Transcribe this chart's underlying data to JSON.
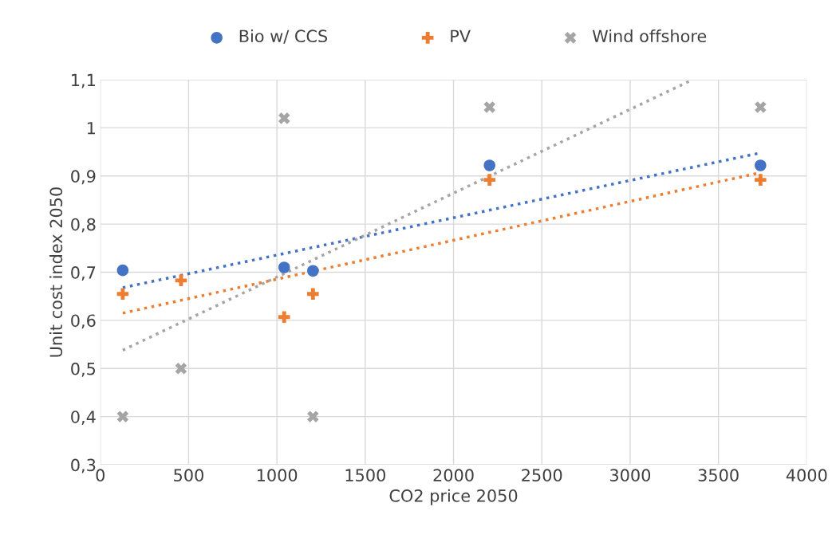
{
  "chart_data": {
    "type": "scatter",
    "xlabel": "CO2 price 2050",
    "ylabel": "Unit cost index 2050",
    "xlim": [
      0,
      4000
    ],
    "xticks": [
      0,
      500,
      1000,
      1500,
      2000,
      2500,
      3000,
      3500,
      4000
    ],
    "ylim": [
      0.3,
      1.1
    ],
    "yticks": [
      {
        "value": 0.3,
        "label": "0,3"
      },
      {
        "value": 0.4,
        "label": "0,4"
      },
      {
        "value": 0.5,
        "label": "0,5"
      },
      {
        "value": 0.6,
        "label": "0,6"
      },
      {
        "value": 0.7,
        "label": "0,7"
      },
      {
        "value": 0.8,
        "label": "0,8"
      },
      {
        "value": 0.9,
        "label": "0,9"
      },
      {
        "value": 1,
        "label": "1"
      },
      {
        "value": 1.1,
        "label": "1,1"
      }
    ],
    "grid": true,
    "legend": "top",
    "series": [
      {
        "name": "Bio w/ CCS",
        "color": "#4472c4",
        "marker": "circle",
        "x": [
          127,
          1041,
          1204,
          2204,
          3738
        ],
        "values": [
          0.704,
          0.71,
          0.703,
          0.922,
          0.922
        ]
      },
      {
        "name": "PV",
        "color": "#ed7d31",
        "marker": "plus",
        "x": [
          127,
          457,
          1041,
          1204,
          2204,
          3738
        ],
        "values": [
          0.655,
          0.683,
          0.607,
          0.655,
          0.892,
          0.892
        ]
      },
      {
        "name": "Wind offshore",
        "color": "#a5a5a5",
        "marker": "cross",
        "x": [
          127,
          457,
          1041,
          1204,
          2204,
          3738
        ],
        "values": [
          0.4,
          0.5,
          1.02,
          0.4,
          1.043,
          1.043
        ]
      },
      {
        "type": "line",
        "line_style": "dotted",
        "color": "#4472c4",
        "x": [
          127,
          3738
        ],
        "values": [
          0.668,
          0.948
        ]
      },
      {
        "type": "line",
        "line_style": "dotted",
        "color": "#ed7d31",
        "x": [
          127,
          3738
        ],
        "values": [
          0.615,
          0.907
        ]
      },
      {
        "type": "line",
        "line_style": "dotted",
        "color": "#a5a5a5",
        "x": [
          127,
          3353
        ],
        "values": [
          0.538,
          1.1
        ]
      }
    ]
  }
}
